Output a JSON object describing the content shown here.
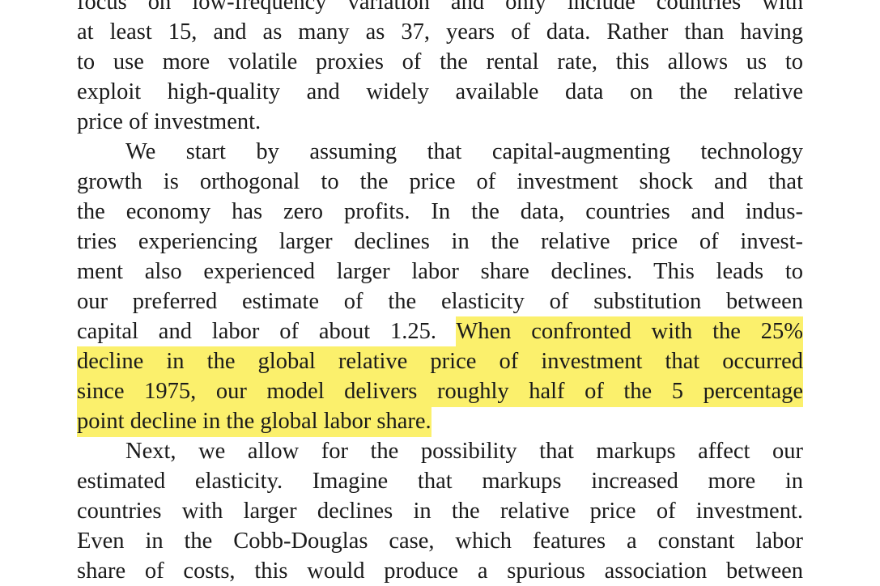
{
  "paragraphs": [
    {
      "lines": [
        [
          {
            "text": "focus on low-frequency variation and only include countries with",
            "highlight": false
          }
        ],
        [
          {
            "text": "at least 15, and as many as 37, years of data. Rather than having",
            "highlight": false
          }
        ],
        [
          {
            "text": "to use more volatile proxies of the rental rate, this allows us to",
            "highlight": false
          }
        ],
        [
          {
            "text": "exploit high-quality and widely available data on the relative",
            "highlight": false
          }
        ],
        [
          {
            "text": "price of investment.",
            "highlight": false
          }
        ]
      ]
    },
    {
      "lines": [
        [
          {
            "text": "We start by assuming that capital-augmenting technology",
            "highlight": false
          }
        ],
        [
          {
            "text": "growth is orthogonal to the price of investment shock and that",
            "highlight": false
          }
        ],
        [
          {
            "text": "the economy has zero profits. In the data, countries and indus-",
            "highlight": false
          }
        ],
        [
          {
            "text": "tries experiencing larger declines in the relative price of invest-",
            "highlight": false
          }
        ],
        [
          {
            "text": "ment also experienced larger labor share declines. This leads to",
            "highlight": false
          }
        ],
        [
          {
            "text": "our preferred estimate of the elasticity of substitution between",
            "highlight": false
          }
        ],
        [
          {
            "text": "capital and labor of about 1.25.",
            "highlight": false
          },
          {
            "text": "When confronted with the 25%",
            "highlight": true
          }
        ],
        [
          {
            "text": "decline in the global relative price of investment that occurred",
            "highlight": true
          }
        ],
        [
          {
            "text": "since 1975, our model delivers roughly half of the 5 percentage",
            "highlight": true
          }
        ],
        [
          {
            "text": "point decline in the global labor share.",
            "highlight": true
          }
        ]
      ]
    },
    {
      "lines": [
        [
          {
            "text": "Next, we allow for the possibility that markups affect our",
            "highlight": false
          }
        ],
        [
          {
            "text": "estimated elasticity. Imagine that markups increased more in",
            "highlight": false
          }
        ],
        [
          {
            "text": "countries with larger declines in the relative price of investment.",
            "highlight": false
          }
        ],
        [
          {
            "text": "Even in the Cobb-Douglas case, which features a constant labor",
            "highlight": false
          }
        ],
        [
          {
            "text": "share of costs, this would produce a spurious association between",
            "highlight": false
          }
        ]
      ]
    }
  ]
}
